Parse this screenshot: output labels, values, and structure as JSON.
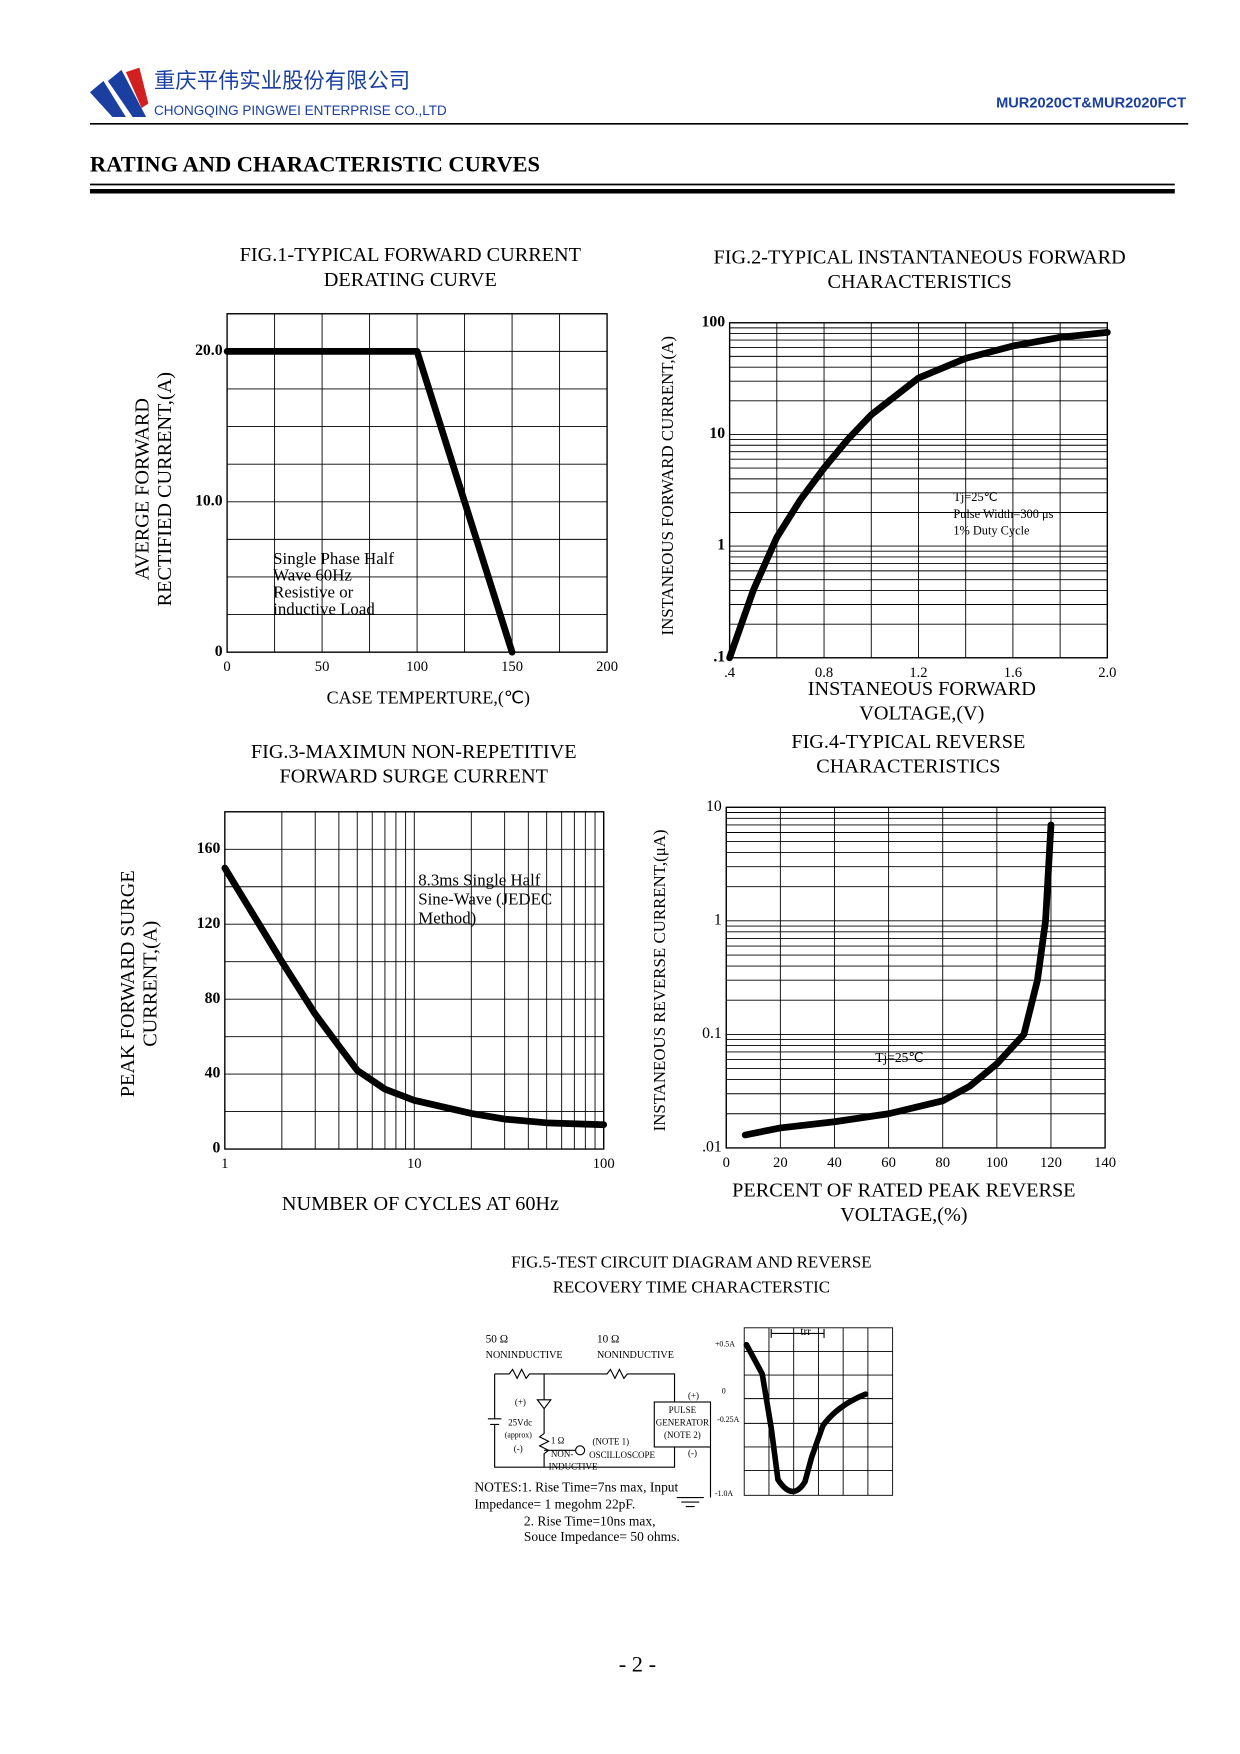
{
  "header": {
    "company_cn": "重庆平伟实业股份有限公司",
    "company_en": "CHONGQING PINGWEI ENTERPRISE CO.,LTD",
    "part": "MUR2020CT&MUR2020FCT"
  },
  "section_title": "RATING AND CHARACTERISTIC CURVES",
  "chart_data": [
    {
      "type": "line",
      "title": [
        "FIG.1-TYPICAL FORWARD CURRENT",
        "DERATING CURVE"
      ],
      "xlabel": [
        "CASE TEMPERTURE,(℃)"
      ],
      "ylabel": [
        "AVERGE FORWARD",
        "RECTIFIED CURRENT,(A)"
      ],
      "x": [
        0,
        100,
        150
      ],
      "values": [
        20,
        20,
        0
      ],
      "color": "#000000",
      "xlim": [
        0,
        200
      ],
      "xticks": [
        0,
        50,
        100,
        150,
        200
      ],
      "ylim": [
        0,
        22.5
      ],
      "yticks": [
        {
          "value": 20,
          "label": "20.0"
        },
        {
          "value": 10,
          "label": "10.0"
        },
        0
      ],
      "xgrid": [
        0,
        25,
        50,
        75,
        100,
        125,
        150,
        175,
        200
      ],
      "ygrid": [
        0,
        2.5,
        5,
        7.5,
        10,
        12.5,
        15,
        17.5,
        20,
        22.5
      ],
      "annotation": [
        "Single Phase Half",
        "Wave 60Hz",
        "Resistive or",
        "inductive Load"
      ]
    },
    {
      "type": "line",
      "title": [
        "FIG.2-TYPICAL INSTANTANEOUS FORWARD",
        "CHARACTERISTICS"
      ],
      "xlabel": [
        "INSTANEOUS FORWARD",
        "VOLTAGE,(V)"
      ],
      "ylabel": [
        "INSTANEOUS FORWARD CURRENT,(A)"
      ],
      "x": [
        0.4,
        0.5,
        0.6,
        0.7,
        0.8,
        0.9,
        1.0,
        1.2,
        1.4,
        1.6,
        1.8,
        2.0
      ],
      "values": [
        0.1,
        0.4,
        1.2,
        2.6,
        5,
        9,
        15,
        32,
        48,
        62,
        74,
        82
      ],
      "color": "#000000",
      "xlim": [
        0.4,
        2.0
      ],
      "xticks": [
        {
          "value": 0.4,
          "label": ".4"
        },
        {
          "value": 0.8,
          "label": "0.8"
        },
        {
          "value": 1.2,
          "label": "1.2"
        },
        {
          "value": 1.6,
          "label": "1.6"
        },
        {
          "value": 2.0,
          "label": "2.0"
        }
      ],
      "ylim": [
        0.1,
        100
      ],
      "ylog": true,
      "yticks": [
        100,
        10,
        1,
        {
          "value": 0.1,
          "label": ".1"
        }
      ],
      "xgrid": [
        0.4,
        0.6,
        0.8,
        1.0,
        1.2,
        1.4,
        1.6,
        1.8,
        2.0
      ],
      "ygrid": [
        0.1,
        0.2,
        0.3,
        0.4,
        0.5,
        0.6,
        0.7,
        0.8,
        0.9,
        1,
        2,
        3,
        4,
        5,
        6,
        7,
        8,
        9,
        10,
        20,
        30,
        40,
        50,
        60,
        70,
        80,
        90,
        100
      ],
      "annotation": [
        "Tj=25℃",
        "Pulse Width=300 μs",
        "1% Duty Cycle"
      ]
    },
    {
      "type": "line",
      "title": [
        "FIG.3-MAXIMUN NON-REPETITIVE",
        "FORWARD SURGE CURRENT"
      ],
      "xlabel": [
        "NUMBER OF CYCLES AT 60Hz"
      ],
      "ylabel": [
        "PEAK FORWARD SURGE",
        "CURRENT,(A)"
      ],
      "x": [
        1,
        2,
        3,
        4,
        5,
        7,
        10,
        20,
        30,
        50,
        100
      ],
      "values": [
        150,
        100,
        72,
        55,
        42,
        32,
        26,
        19,
        16,
        14,
        13
      ],
      "color": "#000000",
      "xlim": [
        1,
        100
      ],
      "xlog": true,
      "xticks": [
        1,
        10,
        100
      ],
      "ylim": [
        0,
        180
      ],
      "yticks": [
        0,
        40,
        80,
        120,
        160
      ],
      "xgrid": [
        1,
        2,
        3,
        4,
        5,
        6,
        7,
        8,
        9,
        10,
        20,
        30,
        40,
        50,
        60,
        70,
        80,
        90,
        100
      ],
      "ygrid": [
        0,
        20,
        40,
        60,
        80,
        100,
        120,
        140,
        160,
        180
      ],
      "annotation": [
        "8.3ms Single Half",
        "Sine-Wave (JEDEC",
        "Method)"
      ]
    },
    {
      "type": "line",
      "title": [
        "FIG.4-TYPICAL REVERSE",
        "CHARACTERISTICS"
      ],
      "xlabel": [
        "PERCENT OF RATED PEAK REVERSE",
        "VOLTAGE,(%)"
      ],
      "ylabel": [
        "INSTANEOUS REVERSE CURRENT,(μA)"
      ],
      "x": [
        7,
        20,
        40,
        60,
        80,
        90,
        100,
        110,
        115,
        118,
        120
      ],
      "values": [
        0.013,
        0.015,
        0.017,
        0.02,
        0.026,
        0.035,
        0.055,
        0.1,
        0.3,
        1,
        7
      ],
      "color": "#000000",
      "xlim": [
        0,
        140
      ],
      "xticks": [
        0,
        20,
        40,
        60,
        80,
        100,
        120,
        140
      ],
      "ylim": [
        0.01,
        10
      ],
      "ylog": true,
      "yticks": [
        10,
        1,
        0.1,
        {
          "value": 0.01,
          "label": ".01"
        }
      ],
      "xgrid": [
        0,
        20,
        40,
        60,
        80,
        100,
        120,
        140
      ],
      "ygrid": [
        0.01,
        0.02,
        0.03,
        0.04,
        0.05,
        0.06,
        0.07,
        0.08,
        0.09,
        0.1,
        0.2,
        0.3,
        0.4,
        0.5,
        0.6,
        0.7,
        0.8,
        0.9,
        1,
        2,
        3,
        4,
        5,
        6,
        7,
        8,
        9,
        10
      ],
      "annotation": [
        "Tj=25℃"
      ]
    }
  ],
  "fig5": {
    "title": [
      "FIG.5-TEST CIRCUIT DIAGRAM AND REVERSE",
      "RECOVERY TIME CHARACTERSTIC"
    ],
    "r1": "50 Ω",
    "r1_type": "NONINDUCTIVE",
    "r2": "10 Ω",
    "r2_type": "NONINDUCTIVE",
    "src_plus": "(+)",
    "src_v": "25Vdc",
    "src_approx": "(approx)",
    "src_minus": "(-)",
    "r3": "1 Ω",
    "r3_type1": "NON-",
    "r3_type2": "INDUCTIVE",
    "osc_note": "(NOTE 1)",
    "osc": "OSCILLOSCOPE",
    "gen1": "PULSE",
    "gen2": "GENERATOR",
    "gen_note": "(NOTE 2)",
    "gen_plus": "(+)",
    "gen_minus": "(-)",
    "notes": [
      "NOTES:1. Rise Time=7ns max, Input",
      "Impedance= 1 megohm 22pF.",
      "2. Rise Time=10ns max,",
      "Souce Impedance= 50 ohms."
    ],
    "w_p05": "+0.5A",
    "w_0": "0",
    "w_m025": "-0.25A",
    "w_m1": "-1.0A",
    "trr": "trr"
  },
  "page_number": "- 2 -"
}
